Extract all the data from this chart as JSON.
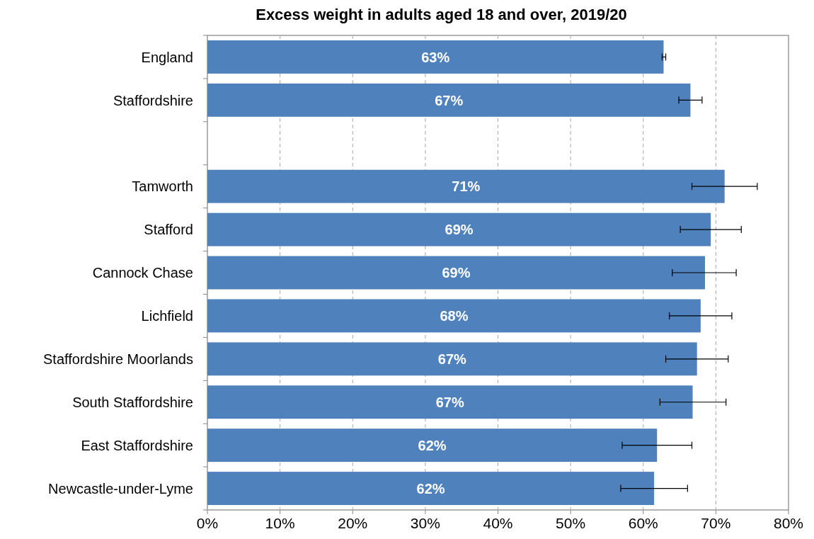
{
  "chart_data": {
    "type": "bar",
    "orientation": "horizontal",
    "title": "Excess weight in adults aged 18 and over, 2019/20",
    "categories": [
      "England",
      "Staffordshire",
      null,
      "Tamworth",
      "Stafford",
      "Cannock Chase",
      "Lichfield",
      "Staffordshire Moorlands",
      "South Staffordshire",
      "East Staffordshire",
      "Newcastle-under-Lyme"
    ],
    "values": [
      62.8,
      66.5,
      null,
      71.2,
      69.3,
      68.5,
      67.9,
      67.4,
      66.8,
      61.9,
      61.5
    ],
    "value_labels": [
      "63%",
      "67%",
      null,
      "71%",
      "69%",
      "69%",
      "68%",
      "67%",
      "67%",
      "62%",
      "62%"
    ],
    "errors": [
      [
        62.6,
        63.1
      ],
      [
        64.9,
        68.1
      ],
      null,
      [
        66.7,
        75.7
      ],
      [
        65.1,
        73.5
      ],
      [
        64.0,
        72.8
      ],
      [
        63.6,
        72.2
      ],
      [
        63.1,
        71.7
      ],
      [
        62.3,
        71.4
      ],
      [
        57.1,
        66.7
      ],
      [
        56.9,
        66.1
      ]
    ],
    "color": "#4f81bd",
    "xlim": [
      0,
      80
    ],
    "xticks": [
      {
        "value": 0,
        "label": "0%"
      },
      {
        "value": 10,
        "label": "10%"
      },
      {
        "value": 20,
        "label": "20%"
      },
      {
        "value": 30,
        "label": "30%"
      },
      {
        "value": 40,
        "label": "40%"
      },
      {
        "value": 50,
        "label": "50%"
      },
      {
        "value": 60,
        "label": "60%"
      },
      {
        "value": 70,
        "label": "70%"
      },
      {
        "value": 80,
        "label": "80%"
      }
    ],
    "grid": "x"
  }
}
